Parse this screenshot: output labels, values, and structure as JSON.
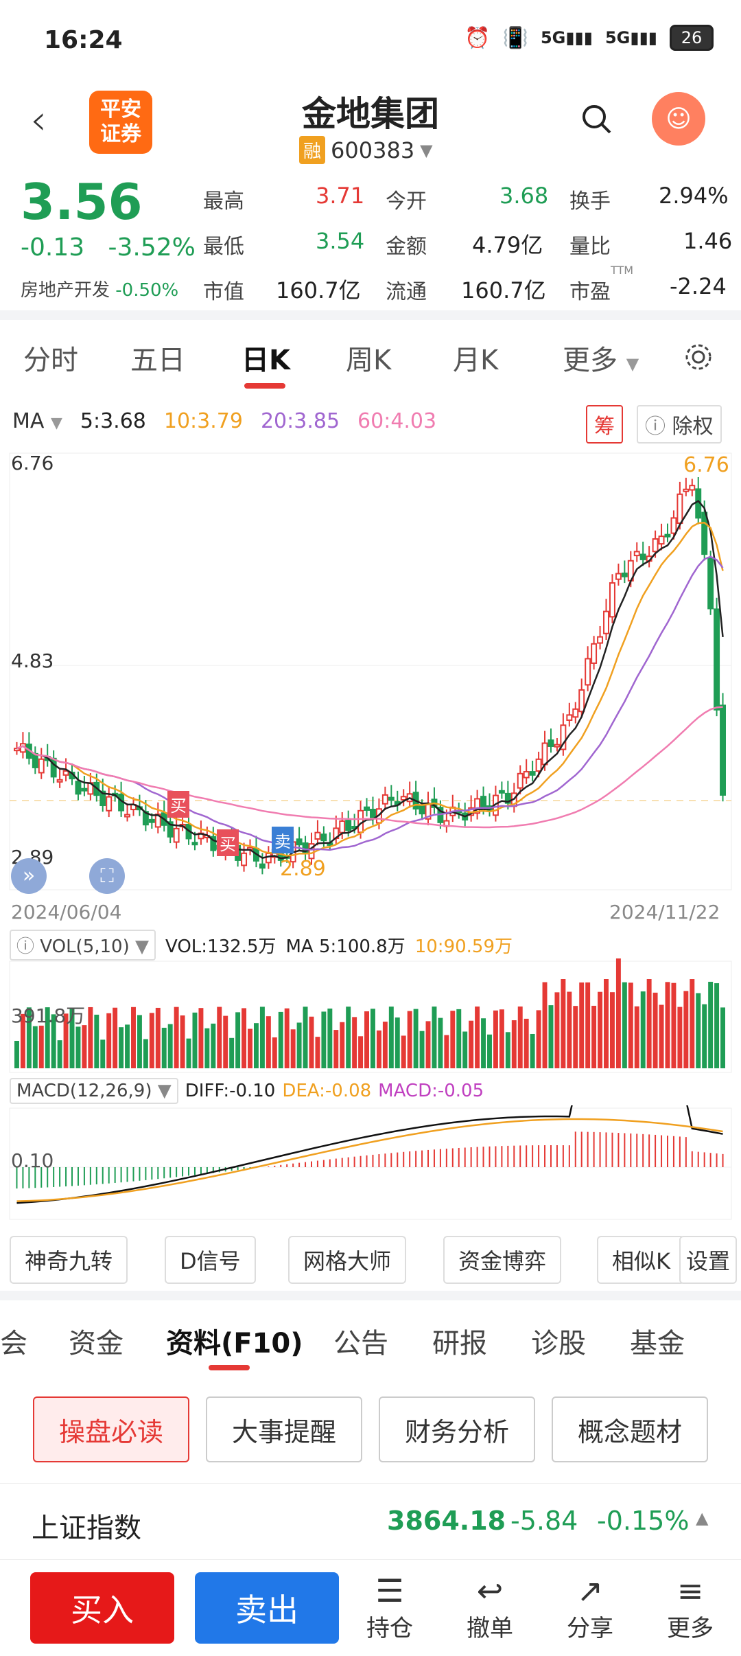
{
  "status": {
    "time": "16:24",
    "battery": "26"
  },
  "header": {
    "title": "金地集团",
    "badge": "融",
    "code": "600383",
    "logo_line1": "平安",
    "logo_line2": "证券"
  },
  "quote": {
    "price": "3.56",
    "change": "-0.13",
    "change_pct": "-3.52%",
    "sector_name": "房地产开发",
    "sector_pct": "-0.50%",
    "high_label": "最高",
    "high": "3.71",
    "open_label": "今开",
    "open": "3.68",
    "turnover_label": "换手",
    "turnover": "2.94%",
    "low_label": "最低",
    "low": "3.54",
    "amount_label": "金额",
    "amount": "4.79亿",
    "ratio_label": "量比",
    "ratio": "1.46",
    "mktcap_label": "市值",
    "mktcap": "160.7亿",
    "float_label": "流通",
    "float": "160.7亿",
    "pe_label": "市盈",
    "pe_sup": "TTM",
    "pe": "-2.24"
  },
  "ktabs": [
    "分时",
    "五日",
    "日K",
    "周K",
    "月K",
    "更多"
  ],
  "ma": {
    "label": "MA",
    "ma5": "5:3.68",
    "ma10": "10:3.79",
    "ma20": "20:3.85",
    "ma60": "60:4.03",
    "chou": "筹",
    "chuquan": "除权"
  },
  "price_axis": {
    "top": "6.76",
    "mid": "4.83",
    "low": "2.89",
    "high_marker": "6.76",
    "low_marker": "2.89",
    "start_date": "2024/06/04",
    "end_date": "2024/11/22"
  },
  "signals": {
    "buy": "买",
    "sell": "卖"
  },
  "vol": {
    "label": "VOL(5,10)",
    "vol": "VOL:132.5万",
    "ma5": "MA 5:100.8万",
    "ma10": "10:90.59万",
    "axis": "391.8万"
  },
  "macd": {
    "label": "MACD(12,26,9)",
    "diff": "DIFF:-0.10",
    "dea": "DEA:-0.08",
    "macd": "MACD:-0.05",
    "axis": "0.10"
  },
  "tools": [
    "神奇九转",
    "D信号",
    "网格大师",
    "资金博弈",
    "相似K",
    "设置"
  ],
  "sections": [
    "会",
    "资金",
    "资料(F10)",
    "公告",
    "研报",
    "诊股",
    "基金"
  ],
  "features": [
    "操盘必读",
    "大事提醒",
    "财务分析",
    "概念题材"
  ],
  "index": {
    "name": "上证指数",
    "value": "3864.18",
    "change": "-5.84",
    "pct": "-0.15%"
  },
  "bottom": {
    "buy": "买入",
    "sell": "卖出",
    "hold": "持仓",
    "cancel": "撤单",
    "share": "分享",
    "more": "更多"
  },
  "colors": {
    "up": "#e53935",
    "down": "#1f9d55",
    "ma5": "#222222",
    "ma10": "#f0a020",
    "ma20": "#a066d0",
    "ma60": "#f07cb0"
  }
}
